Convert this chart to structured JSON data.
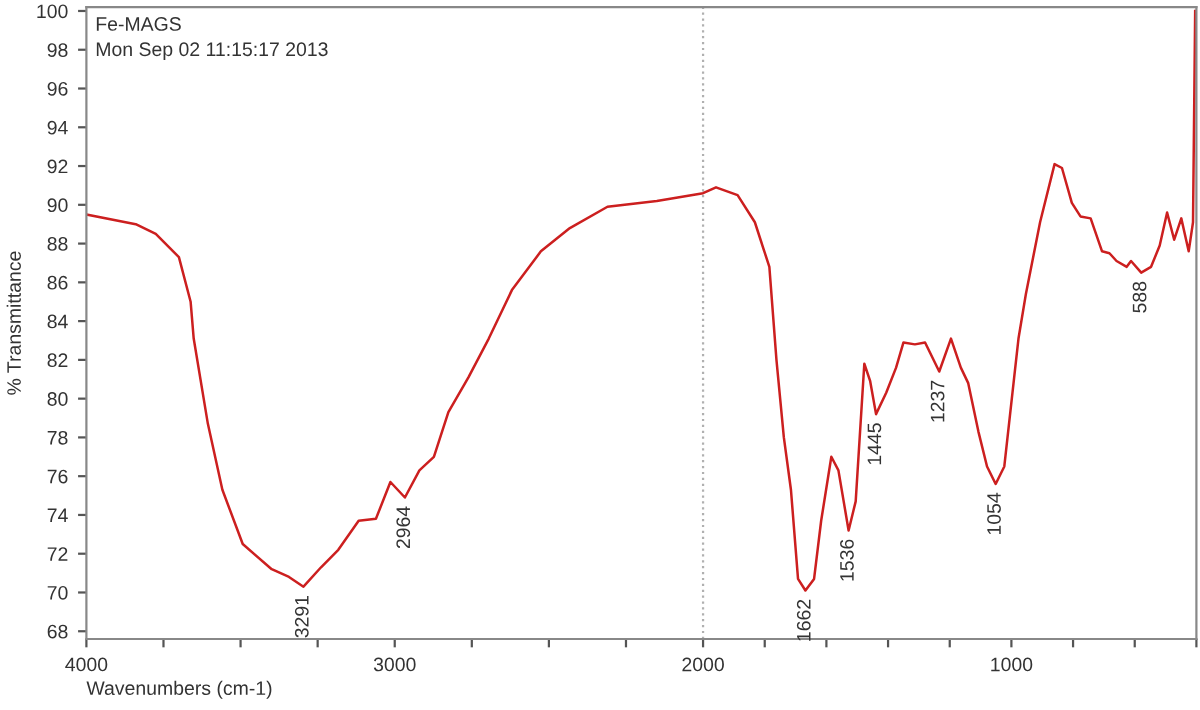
{
  "chart_data": {
    "type": "line",
    "title": "Fe-MAGS",
    "subtitle": "Mon Sep 02 11:15:17 2013",
    "xlabel": "Wavenumbers (cm-1)",
    "ylabel": "% Transmittance",
    "xlim": [
      4000,
      400
    ],
    "ylim": [
      67.6,
      100.2
    ],
    "xticks": [
      4000,
      {
        "value": 3750,
        "label": null
      },
      {
        "value": 3500,
        "label": null
      },
      {
        "value": 3250,
        "label": null
      },
      3000,
      {
        "value": 2750,
        "label": null
      },
      {
        "value": 2500,
        "label": null
      },
      {
        "value": 2250,
        "label": null
      },
      2000,
      {
        "value": 1800,
        "label": null
      },
      {
        "value": 1600,
        "label": null
      },
      {
        "value": 1400,
        "label": null
      },
      {
        "value": 1200,
        "label": null
      },
      1000,
      {
        "value": 800,
        "label": null
      },
      {
        "value": 600,
        "label": null
      },
      {
        "value": 400,
        "label": null
      }
    ],
    "yticks": [
      68,
      70,
      72,
      74,
      76,
      78,
      80,
      82,
      84,
      86,
      88,
      90,
      92,
      94,
      96,
      98,
      100
    ],
    "grid": false,
    "legend": false,
    "ref_lines": [
      {
        "axis": "x",
        "value": 2000,
        "color": "#b0b0b0",
        "line_style": "dotted"
      }
    ],
    "series": [
      {
        "color": "#cc1f1f",
        "x": [
          4000,
          3840,
          3775,
          3700,
          3662,
          3652,
          3606,
          3559,
          3493,
          3399,
          3343,
          3296,
          3239,
          3183,
          3117,
          3061,
          3014,
          2967,
          2920,
          2873,
          2826,
          2761,
          2695,
          2620,
          2526,
          2432,
          2310,
          2150,
          2000,
          1958,
          1888,
          1832,
          1785,
          1762,
          1738,
          1715,
          1692,
          1668,
          1640,
          1617,
          1584,
          1561,
          1528,
          1505,
          1477,
          1458,
          1439,
          1406,
          1374,
          1350,
          1313,
          1280,
          1234,
          1196,
          1164,
          1140,
          1107,
          1079,
          1051,
          1023,
          991,
          977,
          953,
          907,
          860,
          836,
          804,
          776,
          743,
          706,
          682,
          659,
          626,
          612,
          579,
          547,
          519,
          495,
          472,
          449,
          425,
          411,
          404
        ],
        "values": [
          89.5,
          89.0,
          88.5,
          87.3,
          85.0,
          83.1,
          78.7,
          75.3,
          72.5,
          71.2,
          70.8,
          70.3,
          71.3,
          72.2,
          73.7,
          73.8,
          75.7,
          74.9,
          76.3,
          77.0,
          79.3,
          81.1,
          83.1,
          85.6,
          87.6,
          88.8,
          89.9,
          90.2,
          90.6,
          90.9,
          90.5,
          89.1,
          86.8,
          82.0,
          78.0,
          75.3,
          70.7,
          70.1,
          70.7,
          73.7,
          77.0,
          76.3,
          73.2,
          74.7,
          81.8,
          80.9,
          79.2,
          80.3,
          81.6,
          82.9,
          82.8,
          82.9,
          81.4,
          83.1,
          81.6,
          80.8,
          78.3,
          76.5,
          75.6,
          76.5,
          81.1,
          83.1,
          85.4,
          89.1,
          92.1,
          91.9,
          90.1,
          89.4,
          89.3,
          87.6,
          87.5,
          87.1,
          86.8,
          87.1,
          86.5,
          86.8,
          87.9,
          89.6,
          88.2,
          89.3,
          87.6,
          89.1,
          100
        ]
      }
    ],
    "annotations": [
      {
        "text": "3291",
        "x": 3296,
        "y": 70.3
      },
      {
        "text": "2964",
        "x": 2967,
        "y": 74.9
      },
      {
        "text": "1662",
        "x": 1668,
        "y": 70.1
      },
      {
        "text": "1536",
        "x": 1528,
        "y": 73.2
      },
      {
        "text": "1445",
        "x": 1439,
        "y": 79.2
      },
      {
        "text": "1237",
        "x": 1234,
        "y": 81.4
      },
      {
        "text": "1054",
        "x": 1051,
        "y": 75.6
      },
      {
        "text": "588",
        "x": 579,
        "y": 86.5
      }
    ]
  }
}
